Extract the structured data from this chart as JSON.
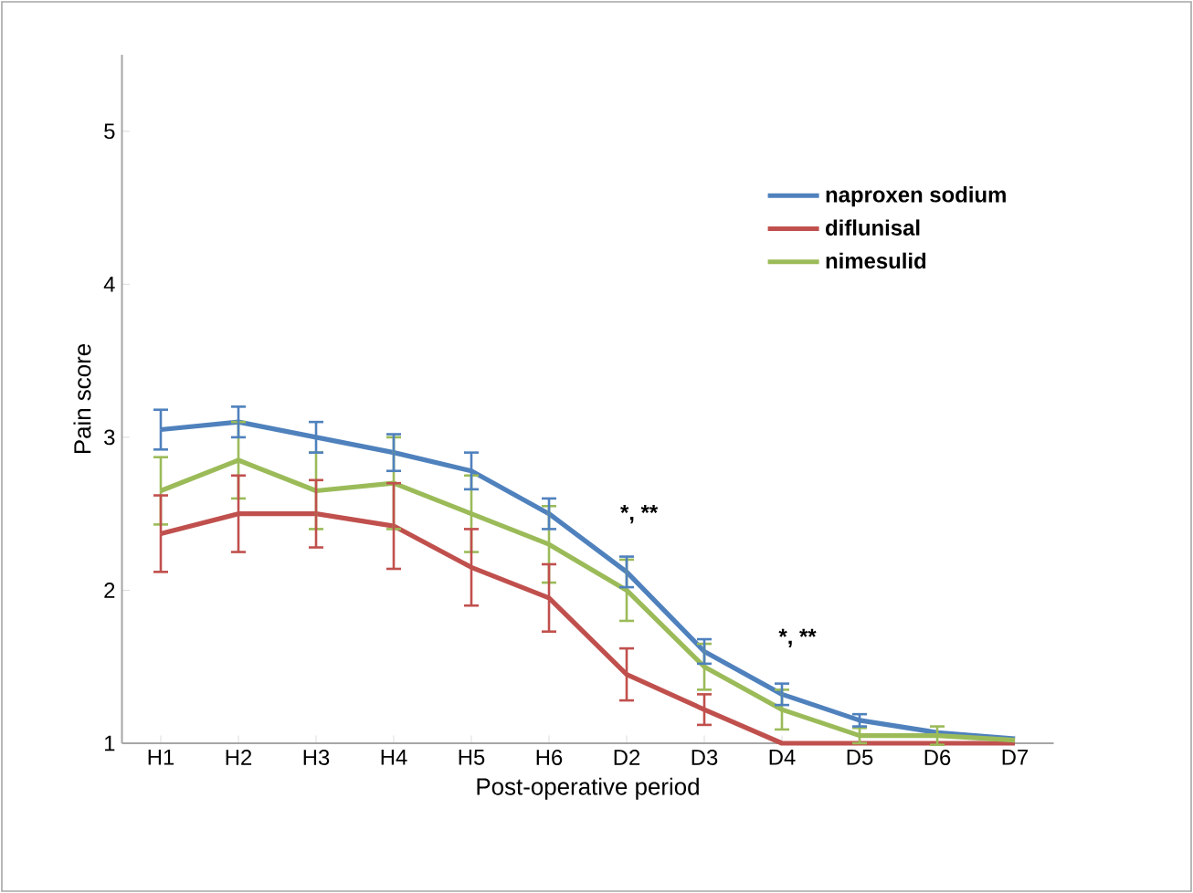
{
  "chart_data": {
    "type": "line",
    "xlabel": "Post-operative period",
    "ylabel": "Pain score",
    "categories": [
      "H1",
      "H2",
      "H3",
      "H4",
      "H5",
      "H6",
      "D2",
      "D3",
      "D4",
      "D5",
      "D6",
      "D7"
    ],
    "ylim": [
      1,
      5.5
    ],
    "yticks": [
      1,
      2,
      3,
      4,
      5
    ],
    "grid": false,
    "legend": "top right",
    "marker": "none",
    "line_style": "solid",
    "series": [
      {
        "name": "naproxen sodium",
        "color": "#4f81bd",
        "values": [
          3.05,
          3.1,
          3.0,
          2.9,
          2.78,
          2.5,
          2.12,
          1.6,
          1.32,
          1.15,
          1.07,
          1.03
        ],
        "errors": [
          0.13,
          0.1,
          0.1,
          0.12,
          0.12,
          0.1,
          0.1,
          0.08,
          0.07,
          0.04,
          null,
          null
        ]
      },
      {
        "name": "diflunisal",
        "color": "#c0504d",
        "values": [
          2.37,
          2.5,
          2.5,
          2.42,
          2.15,
          1.95,
          1.45,
          1.22,
          1.0,
          1.0,
          1.0,
          1.0
        ],
        "errors": [
          0.25,
          0.25,
          0.22,
          0.28,
          0.25,
          0.22,
          0.17,
          0.1,
          null,
          null,
          null,
          null
        ]
      },
      {
        "name": "nimesulid",
        "color": "#9bbb59",
        "values": [
          2.65,
          2.85,
          2.65,
          2.7,
          2.5,
          2.3,
          2.0,
          1.5,
          1.22,
          1.05,
          1.05,
          1.02
        ],
        "errors": [
          0.22,
          0.25,
          0.25,
          0.3,
          0.25,
          0.25,
          0.2,
          0.15,
          0.13,
          0.05,
          0.06,
          null
        ]
      }
    ],
    "annotations": [
      "*, **",
      "*, **"
    ]
  }
}
